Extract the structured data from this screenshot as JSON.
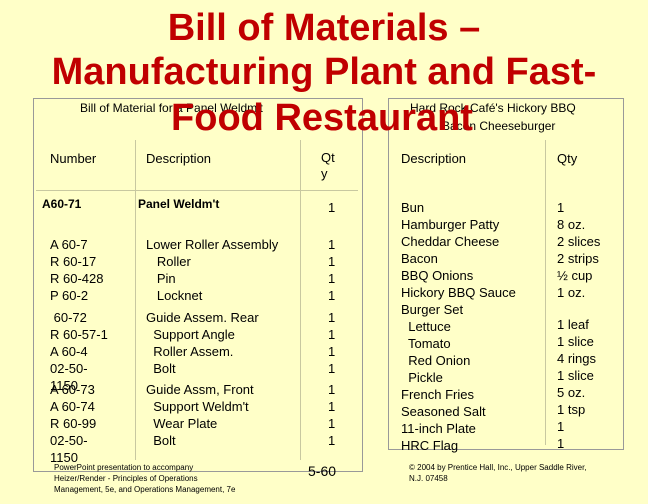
{
  "title": {
    "line1": "Bill of Materials –",
    "line2": "Manufacturing Plant and Fast-",
    "line3": "Food Restaurant"
  },
  "left_table": {
    "caption": "Bill of Material for a Panel Weldm't",
    "headers": {
      "number": "Number",
      "description": "Description",
      "qty": "Qt\ny"
    },
    "top_row": {
      "number": "A60-71",
      "description": "Panel Weldm't",
      "qty": "1"
    },
    "groups": [
      {
        "numbers": "A 60-7\nR 60-17\nR 60-428\nP 60-2",
        "descriptions": "Lower Roller Assembly\n   Roller\n   Pin\n   Locknet",
        "qtys": "1\n1\n1\n1"
      },
      {
        "numbers": " 60-72\nR 60-57-1\nA 60-4\n02-50-\n1150",
        "descriptions": "Guide Assem. Rear\n  Support Angle\n  Roller Assem.\n  Bolt",
        "qtys": "1\n1\n1\n1"
      },
      {
        "numbers": "A 60-73\nA 60-74\nR 60-99\n02-50-\n1150",
        "descriptions": "Guide Assm, Front\n  Support Weldm't\n  Wear Plate\n  Bolt",
        "qtys": "1\n1\n1\n1"
      }
    ]
  },
  "right_table": {
    "caption_line1": "Hard Rock Café's Hickory BBQ",
    "caption_line2": "Bacon Cheeseburger",
    "headers": {
      "description": "Description",
      "qty": "Qty"
    },
    "descriptions": "Bun\nHamburger Patty\nCheddar Cheese\nBacon\nBBQ Onions\nHickory BBQ Sauce\nBurger Set\n  Lettuce\n  Tomato\n  Red Onion\n  Pickle\nFrench Fries\nSeasoned Salt\n11-inch Plate\nHRC Flag",
    "qtys_a": "1\n8 oz.\n2 slices\n2 strips\n½ cup\n1 oz.",
    "qtys_b": "1 leaf\n1 slice\n4 rings\n1 slice\n5 oz.\n1 tsp\n1\n1"
  },
  "footer": {
    "left": "PowerPoint presentation to accompany\nHeizer/Render - Principles of Operations\nManagement, 5e, and Operations Management, 7e",
    "center": "5-60",
    "right": "© 2004 by Prentice Hall, Inc., Upper Saddle River,\nN.J. 07458"
  }
}
